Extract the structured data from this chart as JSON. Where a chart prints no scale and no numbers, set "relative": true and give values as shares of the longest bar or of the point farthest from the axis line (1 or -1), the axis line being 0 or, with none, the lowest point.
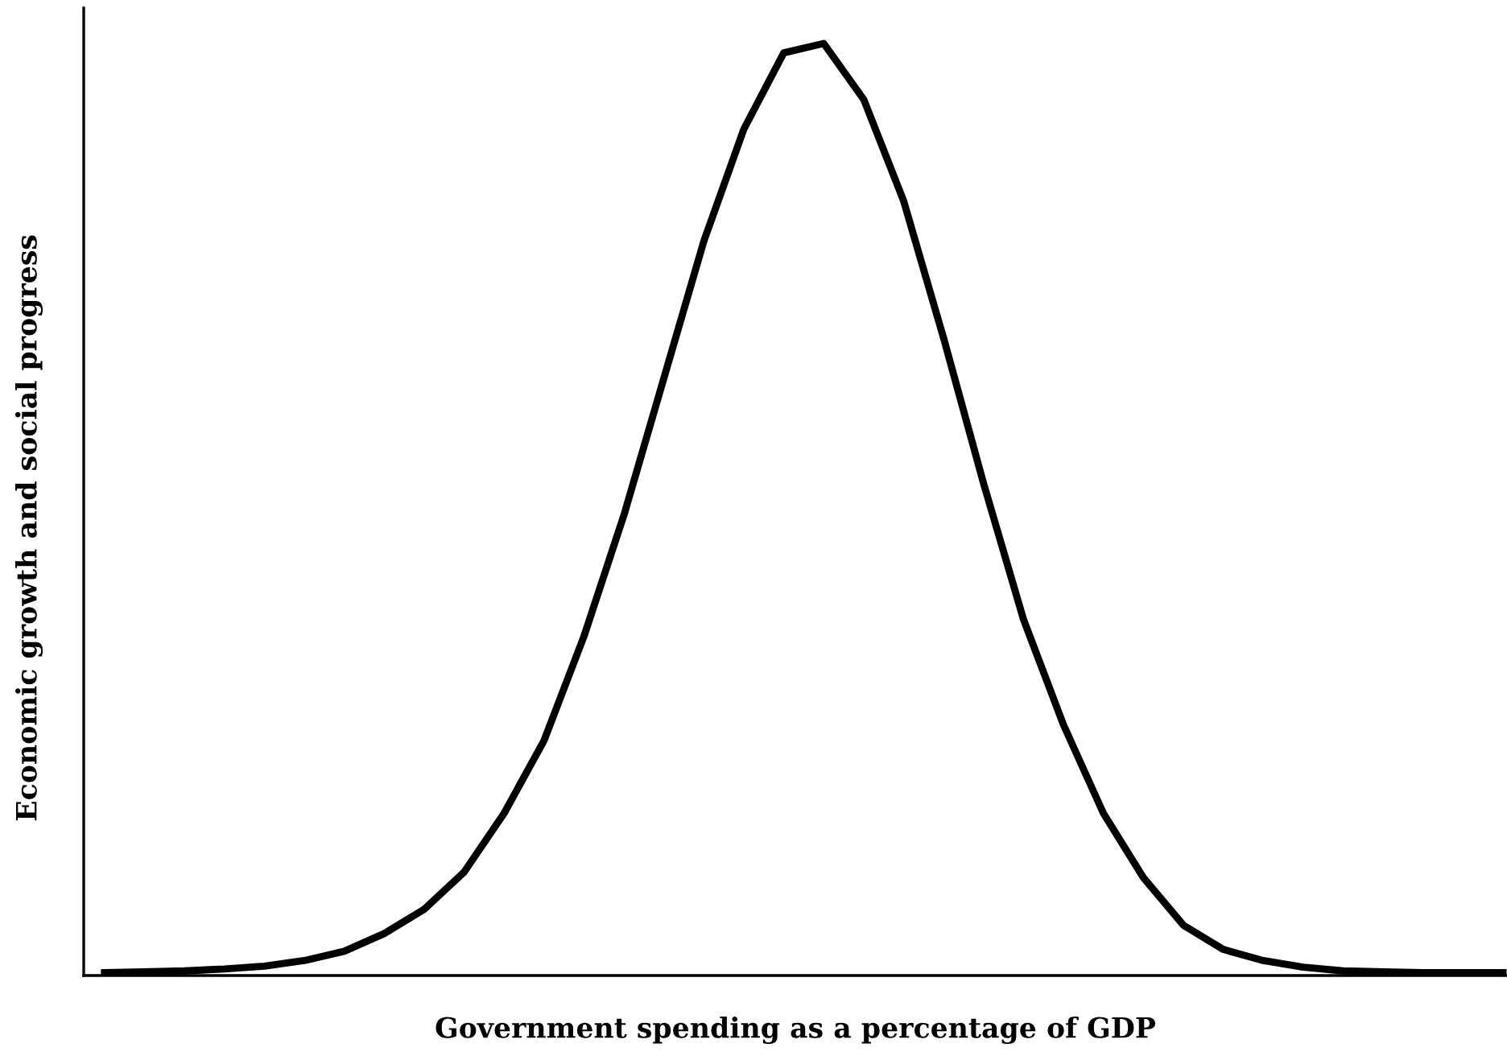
{
  "chart_data": {
    "type": "line",
    "relative": true,
    "xlabel": "Government spending as a percentage of GDP",
    "ylabel": "Economic growth and social progress",
    "categories": [
      null,
      null,
      null,
      null,
      null,
      null,
      null,
      null,
      null,
      null,
      null,
      null,
      null,
      null,
      null,
      null,
      null,
      null,
      null,
      null,
      null,
      null,
      null,
      null,
      null,
      null,
      null,
      null,
      null,
      null,
      null,
      null,
      null,
      null,
      null,
      null
    ],
    "series": [
      {
        "color": "#000000",
        "values": [
          0.003,
          0.004,
          0.005,
          0.007,
          0.01,
          0.016,
          0.026,
          0.045,
          0.071,
          0.111,
          0.174,
          0.252,
          0.364,
          0.494,
          0.641,
          0.788,
          0.908,
          0.99,
          1.0,
          0.94,
          0.831,
          0.684,
          0.528,
          0.382,
          0.269,
          0.174,
          0.105,
          0.054,
          0.028,
          0.016,
          0.009,
          0.005,
          0.004,
          0.003,
          0.003,
          0.003
        ]
      }
    ],
    "grid": false,
    "marker": "none",
    "line_style": "solid"
  }
}
